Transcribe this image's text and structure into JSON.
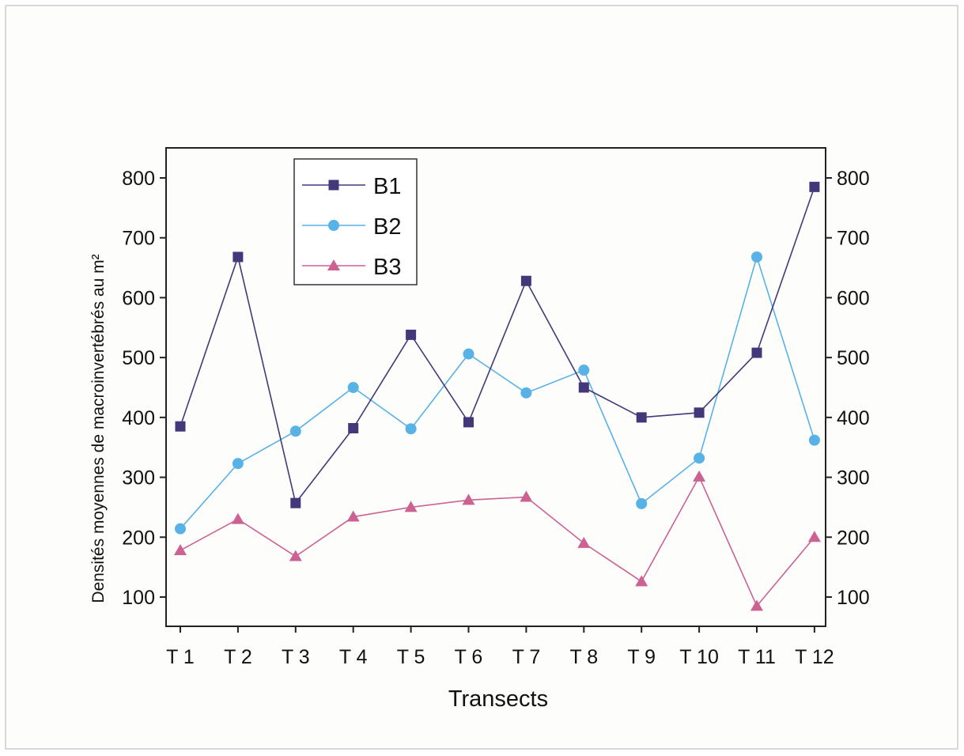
{
  "chart_data": {
    "type": "line",
    "categories": [
      "T 1",
      "T 2",
      "T 3",
      "T 4",
      "T 5",
      "T 6",
      "T 7",
      "T 8",
      "T 9",
      "T 10",
      "T 11",
      "T 12"
    ],
    "series": [
      {
        "name": "B1",
        "color": "#43397a",
        "marker": "square",
        "values": [
          385,
          668,
          257,
          382,
          538,
          392,
          628,
          450,
          400,
          408,
          508,
          785
        ]
      },
      {
        "name": "B2",
        "color": "#59b2e6",
        "marker": "circle",
        "values": [
          214,
          323,
          377,
          450,
          381,
          506,
          441,
          479,
          256,
          332,
          668,
          362
        ]
      },
      {
        "name": "B3",
        "color": "#cc6292",
        "marker": "triangle",
        "values": [
          178,
          230,
          168,
          234,
          250,
          262,
          267,
          190,
          126,
          301,
          85,
          200
        ]
      }
    ],
    "xlabel": "Transects",
    "ylabel": "Densités moyennes de macroinvertébrés au m²",
    "ylim": [
      50,
      850
    ],
    "yticks": [
      100,
      200,
      300,
      400,
      500,
      600,
      700,
      800
    ],
    "y_right_axis": true,
    "grid": false,
    "legend_position": "top-left"
  }
}
